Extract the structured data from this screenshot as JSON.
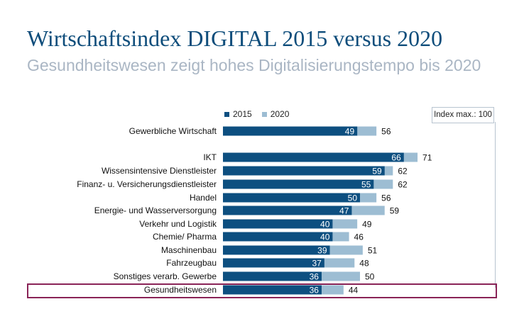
{
  "chart_data": {
    "type": "bar",
    "title": "Wirtschaftsindex DIGITAL 2015 versus 2020",
    "subtitle": "Gesundheitswesen zeigt hohes Digitalisierungstempo bis 2020",
    "note": "Index max.: 100",
    "xlim": [
      0,
      100
    ],
    "grid": false,
    "legend_position": "top",
    "categories": [
      "Gewerbliche Wirtschaft",
      "IKT",
      "Wissensintensive Dienstleister",
      "Finanz- u. Versicherungsdienstleister",
      "Handel",
      "Energie- und Wasserversorgung",
      "Verkehr und Logistik",
      "Chemie/ Pharma",
      "Maschinenbau",
      "Fahrzeugbau",
      "Sonstiges verarb. Gewerbe",
      "Gesundheitswesen"
    ],
    "highlighted_category": "Gesundheitswesen",
    "series": [
      {
        "name": "2015",
        "color": "#0d4f80",
        "values": [
          49,
          66,
          59,
          55,
          50,
          47,
          40,
          40,
          39,
          37,
          36,
          36
        ]
      },
      {
        "name": "2020",
        "color": "#9dbdd3",
        "values": [
          56,
          71,
          62,
          62,
          56,
          59,
          49,
          46,
          51,
          48,
          50,
          44
        ]
      }
    ]
  }
}
